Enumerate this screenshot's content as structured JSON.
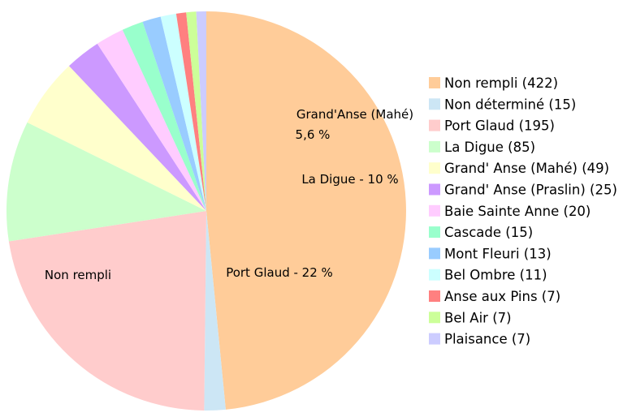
{
  "chart_data": {
    "type": "pie",
    "title": "",
    "start_angle_deg": 0,
    "direction": "clockwise",
    "legend_position": "right",
    "slices": [
      {
        "name": "Non rempli",
        "value": 422,
        "legend_label": "Non rempli (422)",
        "color": "#FFCC99",
        "slice_label": "Non rempli"
      },
      {
        "name": "Non déterminé",
        "value": 15,
        "legend_label": "Non déterminé (15)",
        "color": "#CCE6F5",
        "slice_label": ""
      },
      {
        "name": "Port Glaud",
        "value": 195,
        "legend_label": "Port Glaud (195)",
        "color": "#FFCCCC",
        "slice_label": "Port Glaud - 22 %"
      },
      {
        "name": "La Digue",
        "value": 85,
        "legend_label": "La Digue (85)",
        "color": "#CCFFCC",
        "slice_label": "La Digue - 10 %"
      },
      {
        "name": "Grand' Anse (Mahé)",
        "value": 49,
        "legend_label": "Grand' Anse (Mahé) (49)",
        "color": "#FFFFCC",
        "slice_label": "Grand'Anse (Mahé)",
        "slice_label_line2": "5,6 %"
      },
      {
        "name": "Grand' Anse (Praslin)",
        "value": 25,
        "legend_label": "Grand' Anse (Praslin) (25)",
        "color": "#CC99FF",
        "slice_label": ""
      },
      {
        "name": "Baie Sainte Anne",
        "value": 20,
        "legend_label": "Baie Sainte Anne (20)",
        "color": "#FFCCFF",
        "slice_label": ""
      },
      {
        "name": "Cascade",
        "value": 15,
        "legend_label": "Cascade (15)",
        "color": "#99FFCC",
        "slice_label": ""
      },
      {
        "name": "Mont Fleuri",
        "value": 13,
        "legend_label": "Mont Fleuri (13)",
        "color": "#99CCFF",
        "slice_label": ""
      },
      {
        "name": "Bel Ombre",
        "value": 11,
        "legend_label": "Bel Ombre (11)",
        "color": "#CCFFFF",
        "slice_label": ""
      },
      {
        "name": "Anse aux Pins",
        "value": 7,
        "legend_label": "Anse aux Pins (7)",
        "color": "#FF8080",
        "slice_label": ""
      },
      {
        "name": "Bel Air",
        "value": 7,
        "legend_label": "Bel Air (7)",
        "color": "#CCFF99",
        "slice_label": ""
      },
      {
        "name": "Plaisance",
        "value": 7,
        "legend_label": "Plaisance (7)",
        "color": "#CCCCFF",
        "slice_label": ""
      }
    ]
  }
}
